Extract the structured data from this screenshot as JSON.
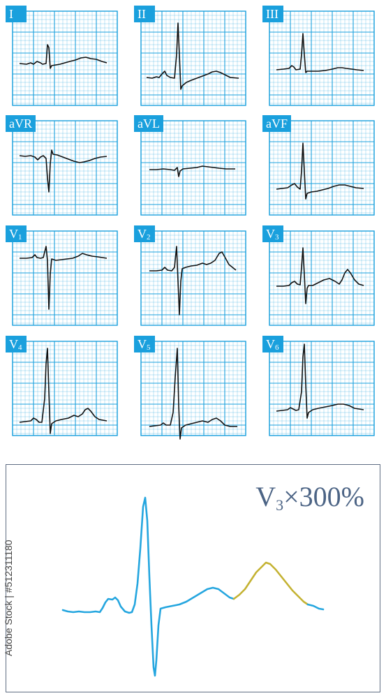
{
  "leads": [
    {
      "key": "I",
      "label": "I",
      "sub": ""
    },
    {
      "key": "II",
      "label": "II",
      "sub": ""
    },
    {
      "key": "III",
      "label": "III",
      "sub": ""
    },
    {
      "key": "aVR",
      "label": "aVR",
      "sub": ""
    },
    {
      "key": "aVL",
      "label": "aVL",
      "sub": ""
    },
    {
      "key": "aVF",
      "label": "aVF",
      "sub": ""
    },
    {
      "key": "V1",
      "label": "V",
      "sub": "1"
    },
    {
      "key": "V2",
      "label": "V",
      "sub": "2"
    },
    {
      "key": "V3",
      "label": "V",
      "sub": "3"
    },
    {
      "key": "V4",
      "label": "V",
      "sub": "4"
    },
    {
      "key": "V5",
      "label": "V",
      "sub": "5"
    },
    {
      "key": "V6",
      "label": "V",
      "sub": "6"
    }
  ],
  "zoom": {
    "lead_letter": "V",
    "lead_sub": "3",
    "scale_text": "×300%"
  },
  "watermark": {
    "text": "Adobe Stock | #512311180"
  },
  "colors": {
    "grid": "#1aa0dd",
    "trace": "#111111",
    "zoom_trace": "#25a6df",
    "t_wave_highlight": "#c4b232",
    "panel_border": "#5e6c82",
    "title_text": "#4c6485"
  }
}
